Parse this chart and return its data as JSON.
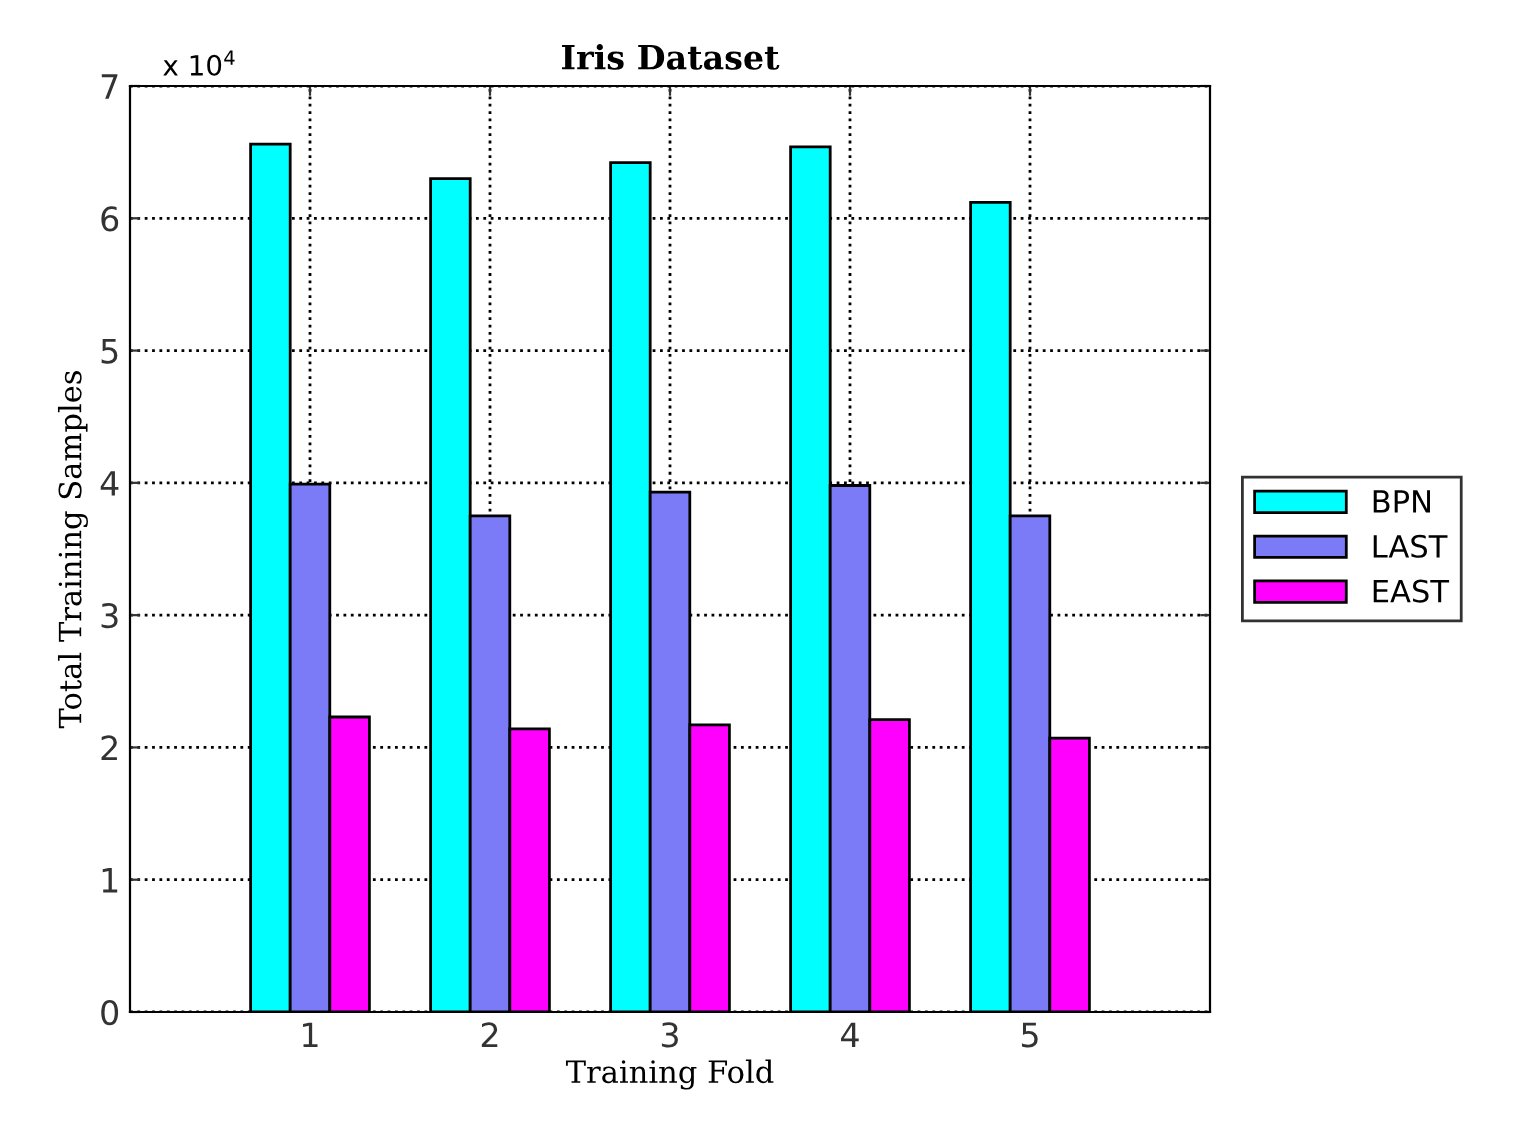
{
  "chart_data": {
    "type": "bar",
    "title": "Iris Dataset",
    "xlabel": "Training Fold",
    "ylabel": "Total Training Samples",
    "categories": [
      "1",
      "2",
      "3",
      "4",
      "5"
    ],
    "series": [
      {
        "name": "BPN",
        "color": "#00ffff",
        "values": [
          6.56,
          6.3,
          6.42,
          6.54,
          6.12
        ]
      },
      {
        "name": "LAST",
        "color": "#7b7bf7",
        "values": [
          3.99,
          3.75,
          3.93,
          3.98,
          3.75
        ]
      },
      {
        "name": "EAST",
        "color": "#ff00ff",
        "values": [
          2.23,
          2.14,
          2.17,
          2.21,
          2.07
        ]
      }
    ],
    "ylim": [
      0,
      7
    ],
    "yticks": [
      0,
      1,
      2,
      3,
      4,
      5,
      6,
      7
    ],
    "annotations": [
      "x 10$^{4}$"
    ],
    "grid": true,
    "legend": "right"
  }
}
